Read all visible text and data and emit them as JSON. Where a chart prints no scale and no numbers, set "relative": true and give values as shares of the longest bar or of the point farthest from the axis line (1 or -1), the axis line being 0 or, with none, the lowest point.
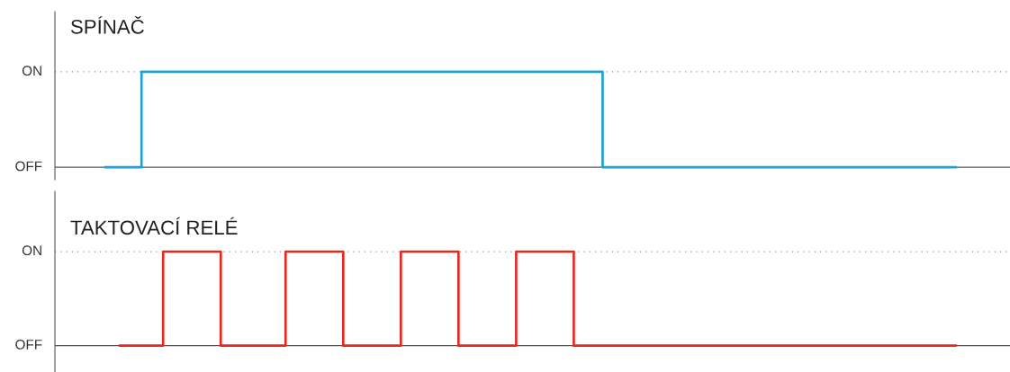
{
  "chart_data": [
    {
      "type": "step",
      "title": "SPÍNAČ",
      "categories": [
        null,
        null,
        null,
        null,
        null,
        null,
        null,
        null,
        null,
        null,
        null,
        null,
        null,
        null,
        null,
        null,
        null,
        null,
        null,
        null,
        null,
        null,
        null,
        null,
        null,
        null,
        null,
        null,
        null,
        null,
        null,
        null,
        null,
        null,
        null,
        null,
        null,
        null,
        null,
        null,
        null,
        null,
        null,
        null,
        null,
        null,
        null,
        null,
        null,
        null,
        null,
        null,
        null,
        null,
        null,
        null,
        null,
        null,
        null,
        null,
        null,
        null,
        null,
        null,
        null,
        null,
        null,
        null,
        null,
        null,
        null,
        null,
        null,
        null,
        null,
        null,
        null,
        null,
        null,
        null,
        null,
        null,
        null,
        null,
        null,
        null,
        null,
        null,
        null,
        null,
        null,
        null,
        null,
        null,
        null,
        null,
        null,
        null,
        null,
        null,
        null,
        null,
        null,
        null,
        null,
        null,
        null,
        null,
        null,
        null,
        null,
        null,
        null,
        null,
        null,
        null,
        null,
        null,
        null
      ],
      "relative": true,
      "ref_lines": [
        {
          "axis": "y",
          "value": 0,
          "label": "OFF",
          "line_style": "solid",
          "color": "#555555"
        },
        {
          "axis": "y",
          "value": 1,
          "label": "ON",
          "line_style": "dotted",
          "color": "#999999"
        }
      ],
      "series": [
        {
          "color": "#1ea0d8",
          "values": [
            0,
            0,
            0,
            0,
            0,
            1,
            1,
            1,
            1,
            1,
            1,
            1,
            1,
            1,
            1,
            1,
            1,
            1,
            1,
            1,
            1,
            1,
            1,
            1,
            1,
            1,
            1,
            1,
            1,
            1,
            1,
            1,
            1,
            1,
            1,
            1,
            1,
            1,
            1,
            1,
            1,
            1,
            1,
            1,
            1,
            1,
            1,
            1,
            1,
            1,
            1,
            1,
            1,
            1,
            1,
            1,
            1,
            1,
            1,
            1,
            1,
            1,
            1,
            1,
            1,
            1,
            1,
            1,
            1,
            0,
            0,
            0,
            0,
            0,
            0,
            0,
            0,
            0,
            0,
            0,
            0,
            0,
            0,
            0,
            0,
            0,
            0,
            0,
            0,
            0,
            0,
            0,
            0,
            0,
            0,
            0,
            0,
            0,
            0,
            0,
            0,
            0,
            0,
            0,
            0,
            0,
            0,
            0,
            0,
            0,
            0,
            0,
            0,
            0,
            0,
            0,
            0,
            0,
            0
          ]
        }
      ]
    },
    {
      "type": "step",
      "title": "TAKTOVACÍ RELÉ",
      "categories": [
        null,
        null,
        null,
        null,
        null,
        null,
        null,
        null,
        null,
        null,
        null,
        null,
        null,
        null,
        null,
        null,
        null,
        null,
        null,
        null,
        null,
        null,
        null,
        null,
        null,
        null,
        null,
        null,
        null,
        null,
        null,
        null,
        null,
        null,
        null,
        null,
        null,
        null,
        null,
        null,
        null,
        null,
        null,
        null,
        null,
        null,
        null,
        null,
        null,
        null,
        null,
        null,
        null,
        null,
        null,
        null,
        null,
        null,
        null,
        null,
        null,
        null,
        null,
        null,
        null,
        null,
        null,
        null,
        null,
        null,
        null,
        null,
        null,
        null,
        null,
        null,
        null,
        null,
        null,
        null,
        null,
        null,
        null,
        null,
        null,
        null,
        null,
        null,
        null,
        null,
        null,
        null,
        null,
        null,
        null,
        null,
        null,
        null,
        null,
        null,
        null,
        null,
        null,
        null,
        null,
        null,
        null,
        null,
        null,
        null,
        null,
        null,
        null,
        null,
        null,
        null,
        null,
        null,
        null
      ],
      "relative": true,
      "ref_lines": [
        {
          "axis": "y",
          "value": 0,
          "label": "OFF",
          "line_style": "solid",
          "color": "#555555"
        },
        {
          "axis": "y",
          "value": 1,
          "label": "ON",
          "line_style": "dotted",
          "color": "#999999"
        }
      ],
      "series": [
        {
          "color": "#e8281e",
          "values": [
            null,
            null,
            0,
            0,
            0,
            0,
            0,
            0,
            1,
            1,
            1,
            1,
            1,
            1,
            1,
            1,
            0,
            0,
            0,
            0,
            0,
            0,
            0,
            0,
            0,
            1,
            1,
            1,
            1,
            1,
            1,
            1,
            1,
            0,
            0,
            0,
            0,
            0,
            0,
            0,
            0,
            1,
            1,
            1,
            1,
            1,
            1,
            1,
            1,
            0,
            0,
            0,
            0,
            0,
            0,
            0,
            0,
            1,
            1,
            1,
            1,
            1,
            1,
            1,
            1,
            0,
            0,
            0,
            0,
            0,
            0,
            0,
            0,
            0,
            0,
            0,
            0,
            0,
            0,
            0,
            0,
            0,
            0,
            0,
            0,
            0,
            0,
            0,
            0,
            0,
            0,
            0,
            0,
            0,
            0,
            0,
            0,
            0,
            0,
            0,
            0,
            0,
            0,
            0,
            0,
            0,
            0,
            0,
            0,
            0,
            0,
            0,
            0,
            0,
            0,
            0,
            0,
            0,
            0
          ]
        }
      ]
    }
  ]
}
